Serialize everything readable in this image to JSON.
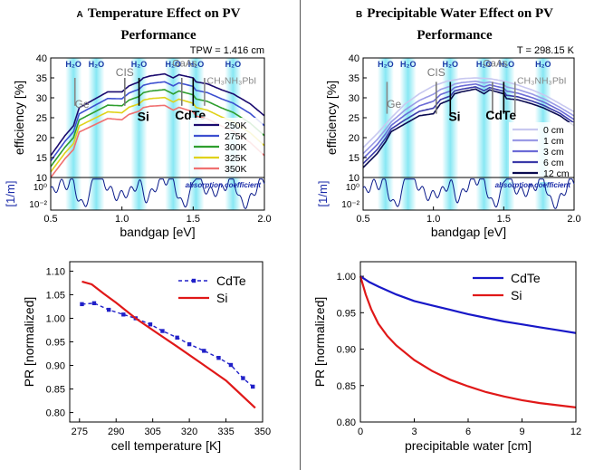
{
  "panels": [
    {
      "letter": "A",
      "title_line1": "Temperature Effect on PV",
      "title_line2": "Performance"
    },
    {
      "letter": "B",
      "title_line1": "Precipitable Water Effect on PV",
      "title_line2": "Performance"
    }
  ],
  "chart_data": [
    {
      "id": "A-top",
      "type": "line",
      "condition_label": "TPW = 1.416 cm",
      "xlabel": "bandgap [eV]",
      "ylabel": "efficiency [%]",
      "xlim": [
        0.5,
        2.0
      ],
      "ylim": [
        10,
        40
      ],
      "xticks": [
        0.5,
        1.0,
        1.5,
        2.0
      ],
      "yticks": [
        10,
        15,
        20,
        25,
        30,
        35,
        40
      ],
      "h2o_label": "H₂O",
      "h2o_bands": [
        0.66,
        0.82,
        1.12,
        1.36,
        1.52,
        1.78
      ],
      "materials": [
        {
          "name": "Ge",
          "x": 0.67,
          "color": "#888888"
        },
        {
          "name": "CIS",
          "x": 1.02,
          "color": "#777777"
        },
        {
          "name": "Si",
          "x": 1.12,
          "color": "#000000"
        },
        {
          "name": "GaAs",
          "x": 1.42,
          "color": "#777777"
        },
        {
          "name": "CdTe",
          "x": 1.5,
          "color": "#000000"
        },
        {
          "name": "CH₃NH₃PbI",
          "x": 1.58,
          "color": "#888888"
        }
      ],
      "series": [
        {
          "name": "250K",
          "color": "#1a0a6e",
          "offset": 0
        },
        {
          "name": "275K",
          "color": "#3c4fd0",
          "offset": -2.5
        },
        {
          "name": "300K",
          "color": "#2e9e2e",
          "offset": -5
        },
        {
          "name": "325K",
          "color": "#e0d21a",
          "offset": -7.5
        },
        {
          "name": "350K",
          "color": "#f07070",
          "offset": -10
        }
      ],
      "base_curve": {
        "x": [
          0.5,
          0.6,
          0.66,
          0.7,
          0.8,
          0.9,
          1.0,
          1.05,
          1.12,
          1.15,
          1.2,
          1.3,
          1.36,
          1.4,
          1.5,
          1.52,
          1.6,
          1.7,
          1.78,
          1.9,
          2.0
        ],
        "y": [
          15.5,
          20.5,
          23.0,
          27.5,
          29.5,
          31.5,
          31.5,
          33.0,
          34.0,
          35.0,
          35.5,
          36.0,
          35.0,
          35.8,
          35.0,
          34.0,
          33.5,
          32.0,
          31.0,
          28.5,
          25.5
        ]
      },
      "absorption": {
        "label": "[1/m]",
        "caption": "absorption coefficient",
        "yticks": [
          "10⁰",
          "10⁻²"
        ]
      }
    },
    {
      "id": "B-top",
      "type": "line",
      "condition_label": "T = 298.15 K",
      "xlabel": "bandgap [eV]",
      "ylabel": "efficiency [%]",
      "xlim": [
        0.5,
        2.0
      ],
      "ylim": [
        10,
        40
      ],
      "xticks": [
        0.5,
        1.0,
        1.5,
        2.0
      ],
      "yticks": [
        10,
        15,
        20,
        25,
        30,
        35,
        40
      ],
      "h2o_label": "H₂O",
      "h2o_bands": [
        0.66,
        0.82,
        1.12,
        1.36,
        1.52,
        1.78
      ],
      "materials": [
        {
          "name": "Ge",
          "x": 0.67,
          "color": "#888888"
        },
        {
          "name": "CIS",
          "x": 1.02,
          "color": "#777777"
        },
        {
          "name": "Si",
          "x": 1.12,
          "color": "#000000"
        },
        {
          "name": "GaAs",
          "x": 1.42,
          "color": "#777777"
        },
        {
          "name": "CdTe",
          "x": 1.5,
          "color": "#000000"
        },
        {
          "name": "CH₃NH₃PbI",
          "x": 1.58,
          "color": "#888888"
        }
      ],
      "series": [
        {
          "name": "0 cm",
          "color": "#c8c8f0",
          "depth": 0
        },
        {
          "name": "1 cm",
          "color": "#9a9ae6",
          "depth": 0.3
        },
        {
          "name": "3 cm",
          "color": "#6b6bd6",
          "depth": 0.55
        },
        {
          "name": "6 cm",
          "color": "#3a3aa8",
          "depth": 0.8
        },
        {
          "name": "12 cm",
          "color": "#0a0a50",
          "depth": 1.0
        }
      ],
      "smooth_curve": {
        "x": [
          0.5,
          0.6,
          0.7,
          0.8,
          0.9,
          1.0,
          1.1,
          1.2,
          1.3,
          1.4,
          1.5,
          1.6,
          1.7,
          1.8,
          1.9,
          2.0
        ],
        "y": [
          17.5,
          21.0,
          25.0,
          28.5,
          31.0,
          33.0,
          34.2,
          34.8,
          35.0,
          34.8,
          34.2,
          33.2,
          32.0,
          30.5,
          28.5,
          26.5
        ]
      },
      "wet_curve": {
        "x": [
          0.5,
          0.6,
          0.66,
          0.7,
          0.8,
          0.9,
          1.0,
          1.05,
          1.12,
          1.15,
          1.2,
          1.3,
          1.36,
          1.4,
          1.5,
          1.52,
          1.6,
          1.7,
          1.78,
          1.9,
          2.0
        ],
        "y": [
          12.5,
          16.0,
          19.0,
          21.5,
          23.5,
          25.5,
          26.0,
          28.5,
          29.5,
          31.0,
          31.5,
          32.2,
          31.0,
          32.0,
          31.0,
          29.8,
          29.5,
          28.5,
          27.5,
          25.5,
          23.0
        ]
      },
      "absorption": {
        "label": "[1/m]",
        "caption": "absorption coefficient",
        "yticks": [
          "10⁰",
          "10⁻²"
        ]
      }
    },
    {
      "id": "A-bottom",
      "type": "line",
      "xlabel": "cell temperature [K]",
      "ylabel": "PR [normalized]",
      "xlim": [
        271,
        350
      ],
      "ylim": [
        0.78,
        1.12
      ],
      "xticks": [
        275,
        290,
        305,
        320,
        335,
        350
      ],
      "yticks": [
        0.8,
        0.85,
        0.9,
        0.95,
        1.0,
        1.05,
        1.1
      ],
      "series": [
        {
          "name": "CdTe",
          "color": "#2020c8",
          "markers": true,
          "x": [
            276,
            281,
            287,
            293,
            298,
            304,
            309,
            315,
            320,
            326,
            332,
            337,
            342,
            346
          ],
          "y": [
            1.03,
            1.032,
            1.018,
            1.008,
            1.0,
            0.987,
            0.973,
            0.959,
            0.945,
            0.931,
            0.916,
            0.901,
            0.873,
            0.855
          ]
        },
        {
          "name": "Si",
          "color": "#e01818",
          "markers": false,
          "x": [
            276,
            280,
            285,
            290,
            298,
            305,
            315,
            325,
            335,
            347
          ],
          "y": [
            1.078,
            1.072,
            1.052,
            1.033,
            1.0,
            0.975,
            0.94,
            0.904,
            0.868,
            0.81
          ]
        }
      ]
    },
    {
      "id": "B-bottom",
      "type": "line",
      "xlabel": "precipitable water [cm]",
      "ylabel": "PR [normalized]",
      "xlim": [
        0,
        12
      ],
      "ylim": [
        0.8,
        1.02
      ],
      "xticks": [
        0,
        3,
        6,
        9,
        12
      ],
      "yticks": [
        0.8,
        0.85,
        0.9,
        0.95,
        1.0
      ],
      "series": [
        {
          "name": "CdTe",
          "color": "#1818c8",
          "x": [
            0,
            0.5,
            1,
            2,
            3,
            4,
            5,
            6,
            7,
            8,
            9,
            10,
            11,
            12
          ],
          "y": [
            1.0,
            0.992,
            0.986,
            0.975,
            0.966,
            0.96,
            0.954,
            0.948,
            0.943,
            0.938,
            0.934,
            0.93,
            0.926,
            0.922
          ]
        },
        {
          "name": "Si",
          "color": "#e01818",
          "x": [
            0,
            0.3,
            0.6,
            1,
            1.5,
            2,
            3,
            4,
            5,
            6,
            7,
            8,
            9,
            10,
            11,
            12
          ],
          "y": [
            1.0,
            0.975,
            0.955,
            0.935,
            0.918,
            0.905,
            0.885,
            0.87,
            0.858,
            0.849,
            0.841,
            0.835,
            0.83,
            0.826,
            0.823,
            0.82
          ]
        }
      ]
    }
  ]
}
